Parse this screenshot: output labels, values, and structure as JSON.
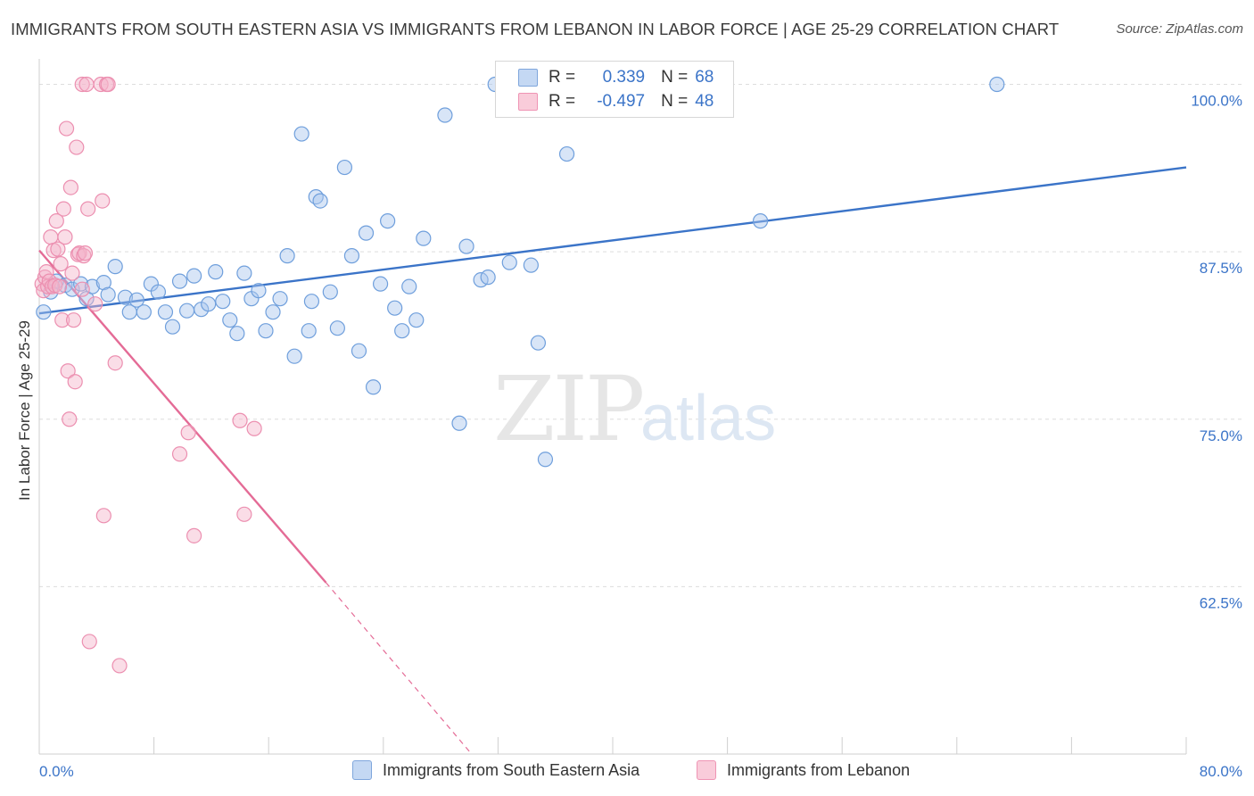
{
  "title": "IMMIGRANTS FROM SOUTH EASTERN ASIA VS IMMIGRANTS FROM LEBANON IN LABOR FORCE | AGE 25-29 CORRELATION CHART",
  "source": "Source: ZipAtlas.com",
  "watermark": {
    "zip": "ZIP",
    "atlas": "atlas"
  },
  "legend": {
    "blue": {
      "r_label": "R =",
      "r_value": "0.339",
      "n_label": "N =",
      "n_value": "68"
    },
    "pink": {
      "r_label": "R =",
      "r_value": "-0.497",
      "n_label": "N =",
      "n_value": "48"
    }
  },
  "colors": {
    "blue": "#3b74c8",
    "blue_fill": "#a9c6ee",
    "pink": "#e46b96",
    "pink_fill": "#f5b4c9",
    "grid": "#dddddd"
  },
  "chart_data": {
    "type": "scatter",
    "xlabel": "",
    "ylabel": "In Labor Force | Age 25-29",
    "xlim": [
      0,
      80
    ],
    "ylim": [
      50,
      101.5
    ],
    "x_tick_labels": [
      "0.0%",
      "80.0%"
    ],
    "y_ticks": [
      62.5,
      75.0,
      87.5,
      100.0
    ],
    "y_tick_labels": [
      "62.5%",
      "75.0%",
      "87.5%",
      "100.0%"
    ],
    "grid": "horizontal dashed",
    "series": [
      {
        "name": "Immigrants from South Eastern Asia",
        "color": "#3b74c8",
        "points": [
          [
            0.3,
            83.0
          ],
          [
            0.8,
            84.5
          ],
          [
            1.2,
            85.3
          ],
          [
            1.8,
            85.0
          ],
          [
            2.3,
            84.7
          ],
          [
            2.9,
            85.1
          ],
          [
            3.3,
            84.0
          ],
          [
            3.7,
            84.9
          ],
          [
            4.5,
            85.2
          ],
          [
            4.8,
            84.3
          ],
          [
            5.3,
            86.4
          ],
          [
            6.0,
            84.1
          ],
          [
            6.3,
            83.0
          ],
          [
            6.8,
            83.9
          ],
          [
            7.3,
            83.0
          ],
          [
            7.8,
            85.1
          ],
          [
            8.3,
            84.5
          ],
          [
            8.8,
            83.0
          ],
          [
            9.3,
            81.9
          ],
          [
            9.8,
            85.3
          ],
          [
            10.3,
            83.1
          ],
          [
            10.8,
            85.7
          ],
          [
            11.3,
            83.2
          ],
          [
            11.8,
            83.6
          ],
          [
            12.3,
            86.0
          ],
          [
            12.8,
            83.8
          ],
          [
            13.3,
            82.4
          ],
          [
            13.8,
            81.4
          ],
          [
            14.3,
            85.9
          ],
          [
            14.8,
            84.0
          ],
          [
            15.3,
            84.6
          ],
          [
            15.8,
            81.6
          ],
          [
            16.3,
            83.0
          ],
          [
            16.8,
            84.0
          ],
          [
            17.3,
            87.2
          ],
          [
            17.8,
            79.7
          ],
          [
            18.3,
            96.3
          ],
          [
            18.8,
            81.6
          ],
          [
            19.0,
            83.8
          ],
          [
            19.3,
            91.6
          ],
          [
            19.6,
            91.3
          ],
          [
            20.3,
            84.5
          ],
          [
            20.8,
            81.8
          ],
          [
            21.3,
            93.8
          ],
          [
            21.8,
            87.2
          ],
          [
            22.3,
            80.1
          ],
          [
            22.8,
            88.9
          ],
          [
            23.3,
            77.4
          ],
          [
            23.8,
            85.1
          ],
          [
            24.3,
            89.8
          ],
          [
            24.8,
            83.3
          ],
          [
            25.3,
            81.6
          ],
          [
            25.8,
            84.9
          ],
          [
            26.3,
            82.4
          ],
          [
            26.8,
            88.5
          ],
          [
            28.3,
            97.7
          ],
          [
            29.3,
            74.7
          ],
          [
            29.8,
            87.9
          ],
          [
            30.8,
            85.4
          ],
          [
            31.3,
            85.6
          ],
          [
            31.8,
            100.0
          ],
          [
            32.8,
            86.7
          ],
          [
            34.3,
            86.5
          ],
          [
            35.3,
            72.0
          ],
          [
            34.8,
            80.7
          ],
          [
            36.8,
            94.8
          ],
          [
            50.3,
            89.8
          ],
          [
            66.8,
            100.0
          ]
        ]
      },
      {
        "name": "Immigrants from Lebanon",
        "color": "#e46b96",
        "points": [
          [
            0.2,
            85.1
          ],
          [
            0.3,
            84.6
          ],
          [
            0.4,
            85.6
          ],
          [
            0.5,
            86.0
          ],
          [
            0.6,
            84.9
          ],
          [
            0.7,
            85.3
          ],
          [
            0.8,
            88.6
          ],
          [
            0.9,
            84.9
          ],
          [
            1.0,
            87.6
          ],
          [
            1.1,
            85.0
          ],
          [
            1.2,
            89.8
          ],
          [
            1.3,
            87.7
          ],
          [
            1.4,
            84.9
          ],
          [
            1.5,
            86.6
          ],
          [
            1.6,
            82.4
          ],
          [
            1.7,
            90.7
          ],
          [
            1.8,
            88.6
          ],
          [
            1.9,
            96.7
          ],
          [
            2.0,
            78.6
          ],
          [
            2.1,
            75.0
          ],
          [
            2.2,
            92.3
          ],
          [
            2.3,
            85.9
          ],
          [
            2.4,
            82.4
          ],
          [
            2.5,
            77.8
          ],
          [
            2.6,
            95.3
          ],
          [
            2.7,
            87.3
          ],
          [
            2.8,
            87.4
          ],
          [
            3.0,
            84.7
          ],
          [
            3.1,
            87.2
          ],
          [
            3.2,
            87.4
          ],
          [
            3.4,
            90.7
          ],
          [
            3.0,
            100.0
          ],
          [
            3.3,
            100.0
          ],
          [
            3.5,
            58.4
          ],
          [
            3.9,
            83.6
          ],
          [
            4.3,
            100.0
          ],
          [
            4.5,
            67.8
          ],
          [
            4.7,
            100.0
          ],
          [
            4.4,
            91.3
          ],
          [
            5.3,
            79.2
          ],
          [
            5.6,
            56.6
          ],
          [
            9.8,
            72.4
          ],
          [
            10.4,
            74.0
          ],
          [
            10.8,
            66.3
          ],
          [
            14.0,
            74.9
          ],
          [
            14.3,
            67.9
          ],
          [
            15.0,
            74.3
          ],
          [
            4.8,
            100.0
          ]
        ]
      }
    ],
    "trend_lines": [
      {
        "series": "Immigrants from South Eastern Asia",
        "x": [
          0,
          80
        ],
        "y": [
          82.9,
          93.8
        ],
        "style": "solid"
      },
      {
        "series": "Immigrants from Lebanon",
        "x": [
          0,
          20
        ],
        "y": [
          87.6,
          62.8
        ],
        "style": "solid",
        "extension_x": [
          20,
          30
        ],
        "extension_y": [
          62.8,
          50.2
        ]
      }
    ]
  }
}
